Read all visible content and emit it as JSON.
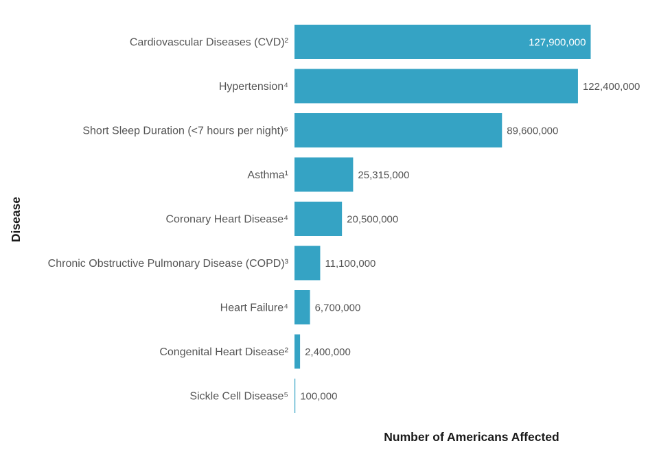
{
  "chart_data": {
    "type": "bar",
    "orientation": "horizontal",
    "categories": [
      "Cardiovascular Diseases (CVD)²",
      "Hypertension⁴",
      "Short Sleep Duration (<7 hours per night)⁶",
      "Asthma¹",
      "Coronary Heart Disease⁴",
      "Chronic Obstructive Pulmonary Disease (COPD)³",
      "Heart Failure⁴",
      "Congenital Heart Disease²",
      "Sickle Cell Disease⁵"
    ],
    "values": [
      127900000,
      122400000,
      89600000,
      25315000,
      20500000,
      11100000,
      6700000,
      2400000,
      100000
    ],
    "value_labels": [
      "127,900,000",
      "122,400,000",
      "89,600,000",
      "25,315,000",
      "20,500,000",
      "11,100,000",
      "6,700,000",
      "2,400,000",
      "100,000"
    ],
    "title": "",
    "xlabel": "Number of Americans Affected",
    "ylabel": "Disease",
    "xlim": [
      0,
      130000000
    ],
    "grid": false,
    "legend": "none",
    "colors": {
      "bar": "#35a3c4",
      "label_inside": "#ffffff",
      "label_outside": "#555555"
    }
  }
}
